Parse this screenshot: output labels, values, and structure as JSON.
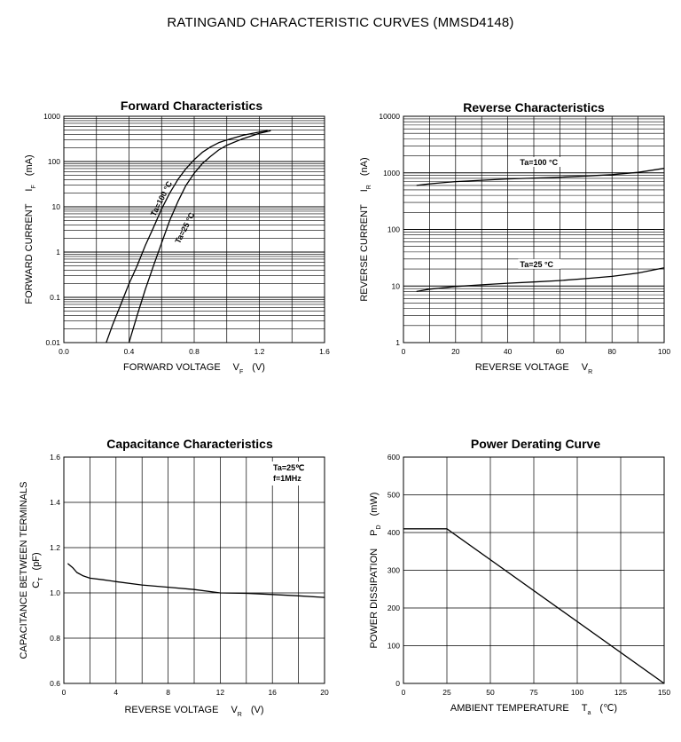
{
  "page_title": "RATINGAND CHARACTERISTIC CURVES  (MMSD4148)",
  "chart_data": [
    {
      "id": "forward",
      "type": "line",
      "title": "Forward    Characteristics",
      "xlabel": "FORWARD VOLTAGE",
      "xlabel_symbol": "V",
      "xlabel_sub": "F",
      "xlabel_unit": "(V)",
      "ylabel": "FORWARD CURRENT",
      "ylabel_symbol": "I",
      "ylabel_sub": "F",
      "ylabel_unit": "(mA)",
      "x_scale": "linear",
      "y_scale": "log",
      "xlim": [
        0,
        1.6
      ],
      "ylim": [
        0.01,
        1000
      ],
      "x_ticks": [
        "0.0",
        "0.4",
        "0.8",
        "1.2",
        "1.6"
      ],
      "y_ticks": [
        "0.01",
        "0.1",
        "1",
        "10",
        "100",
        "1000"
      ],
      "grid": true,
      "series": [
        {
          "name": "Ta=100 °C",
          "x": [
            0.26,
            0.3,
            0.35,
            0.4,
            0.45,
            0.5,
            0.55,
            0.6,
            0.65,
            0.7,
            0.75,
            0.8,
            0.85,
            0.9,
            0.95,
            1.0,
            1.1,
            1.2,
            1.25
          ],
          "y": [
            0.01,
            0.025,
            0.07,
            0.2,
            0.5,
            1.4,
            3.5,
            9,
            20,
            40,
            70,
            110,
            160,
            210,
            260,
            300,
            380,
            450,
            480
          ]
        },
        {
          "name": "Ta=25 °C",
          "x": [
            0.4,
            0.45,
            0.5,
            0.55,
            0.6,
            0.65,
            0.7,
            0.75,
            0.8,
            0.85,
            0.9,
            0.95,
            1.0,
            1.1,
            1.2,
            1.27
          ],
          "y": [
            0.01,
            0.04,
            0.15,
            0.5,
            1.6,
            5,
            13,
            30,
            55,
            90,
            130,
            180,
            230,
            320,
            420,
            480
          ]
        }
      ]
    },
    {
      "id": "reverse",
      "type": "line",
      "title": "Reverse    Characteristics",
      "xlabel": "REVERSE VOLTAGE",
      "xlabel_symbol": "V",
      "xlabel_sub": "R",
      "xlabel_unit": "",
      "ylabel": "REVERSE CURRENT",
      "ylabel_symbol": "I",
      "ylabel_sub": "R",
      "ylabel_unit": "(nA)",
      "x_scale": "linear",
      "y_scale": "log",
      "xlim": [
        0,
        100
      ],
      "ylim": [
        1,
        10000
      ],
      "x_ticks": [
        "0",
        "20",
        "40",
        "60",
        "80",
        "100"
      ],
      "y_ticks": [
        "1",
        "10",
        "100",
        "1000",
        "10000"
      ],
      "grid": true,
      "series": [
        {
          "name": "Ta=100 °C",
          "x": [
            5,
            10,
            20,
            30,
            40,
            50,
            60,
            70,
            80,
            90,
            100
          ],
          "y": [
            600,
            640,
            700,
            740,
            780,
            810,
            840,
            880,
            930,
            1020,
            1200
          ]
        },
        {
          "name": "Ta=25 °C",
          "x": [
            5,
            10,
            20,
            30,
            40,
            50,
            60,
            70,
            80,
            90,
            100
          ],
          "y": [
            8,
            8.8,
            9.8,
            10.5,
            11.2,
            11.8,
            12.5,
            13.5,
            14.8,
            17,
            21
          ]
        }
      ]
    },
    {
      "id": "capacitance",
      "type": "line",
      "title": "Capacitance Characteristics",
      "xlabel": "REVERSE VOLTAGE",
      "xlabel_symbol": "V",
      "xlabel_sub": "R",
      "xlabel_unit": "(V)",
      "ylabel": "CAPACITANCE BETWEEN TERMINALS",
      "ylabel_symbol": "C",
      "ylabel_sub": "T",
      "ylabel_unit": "(pF)",
      "x_scale": "linear",
      "y_scale": "linear",
      "xlim": [
        0,
        20
      ],
      "ylim": [
        0.6,
        1.6
      ],
      "x_ticks": [
        "0",
        "4",
        "8",
        "12",
        "16",
        "20"
      ],
      "y_ticks": [
        "0.6",
        "0.8",
        "1.0",
        "1.2",
        "1.4",
        "1.6"
      ],
      "grid": true,
      "annotation_lines": [
        "Ta=25℃",
        "f=1MHz"
      ],
      "series": [
        {
          "name": "",
          "x": [
            0.3,
            0.7,
            1.0,
            1.5,
            2,
            3,
            4,
            6,
            8,
            10,
            12,
            14,
            16,
            18,
            20
          ],
          "y": [
            1.13,
            1.11,
            1.09,
            1.075,
            1.065,
            1.058,
            1.05,
            1.035,
            1.025,
            1.015,
            1.0,
            0.998,
            0.993,
            0.987,
            0.98
          ]
        }
      ]
    },
    {
      "id": "derating",
      "type": "line",
      "title": "Power Derating Curve",
      "xlabel": "AMBIENT TEMPERATURE",
      "xlabel_symbol": "T",
      "xlabel_sub": "a",
      "xlabel_unit": "(℃)",
      "ylabel": "POWER DISSIPATION",
      "ylabel_symbol": "P",
      "ylabel_sub": "D",
      "ylabel_unit": "(mW)",
      "x_scale": "linear",
      "y_scale": "linear",
      "xlim": [
        0,
        150
      ],
      "ylim": [
        0,
        600
      ],
      "x_ticks": [
        "0",
        "25",
        "50",
        "75",
        "100",
        "125",
        "150"
      ],
      "y_ticks": [
        "0",
        "100",
        "200",
        "300",
        "400",
        "500",
        "600"
      ],
      "grid": true,
      "series": [
        {
          "name": "",
          "x": [
            0,
            25,
            150
          ],
          "y": [
            410,
            410,
            0
          ]
        }
      ]
    }
  ]
}
